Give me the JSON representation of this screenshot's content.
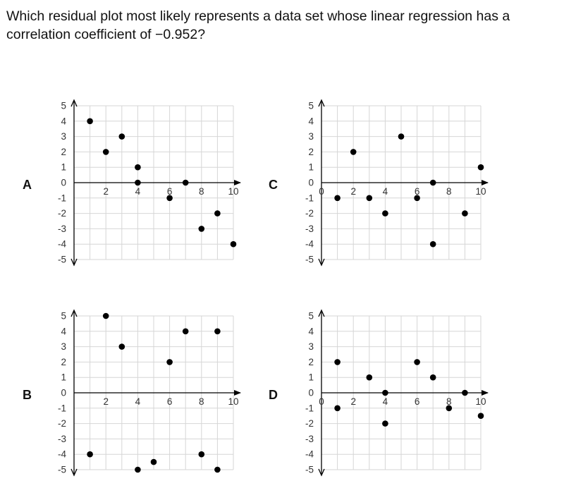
{
  "question": {
    "text": "Which residual plot most likely represents a data set whose linear regression has a correlation coefficient of −0.952?"
  },
  "colors": {
    "point": "#000000",
    "grid": "#d6d6d6",
    "axis": "#000000",
    "tick_label": "#333333"
  },
  "chart_data": [
    {
      "type": "scatter",
      "option": "A",
      "xlim": [
        0,
        10
      ],
      "ylim": [
        -5,
        5
      ],
      "x_ticks": [
        "2",
        "4",
        "6",
        "8",
        "10"
      ],
      "y_ticks": [
        "5",
        "4",
        "3",
        "2",
        "1",
        "0",
        "-1",
        "-2",
        "-3",
        "-4",
        "-5"
      ],
      "grid": true,
      "points": [
        [
          1,
          4
        ],
        [
          2,
          2
        ],
        [
          3,
          3
        ],
        [
          4,
          1
        ],
        [
          4,
          0
        ],
        [
          6,
          -1
        ],
        [
          7,
          0
        ],
        [
          8,
          -3
        ],
        [
          9,
          -2
        ],
        [
          10,
          -4
        ]
      ]
    },
    {
      "type": "scatter",
      "option": "C",
      "xlim": [
        0,
        10
      ],
      "ylim": [
        -5,
        5
      ],
      "x_ticks": [
        "0",
        "2",
        "4",
        "6",
        "8",
        "10"
      ],
      "y_ticks": [
        "5",
        "4",
        "3",
        "2",
        "1",
        "0",
        "-1",
        "-2",
        "-3",
        "-4",
        "-5"
      ],
      "grid": true,
      "points": [
        [
          1,
          -1
        ],
        [
          2,
          2
        ],
        [
          3,
          -1
        ],
        [
          4,
          -2
        ],
        [
          5,
          3
        ],
        [
          6,
          -1
        ],
        [
          7,
          0
        ],
        [
          7,
          -4
        ],
        [
          9,
          -2
        ],
        [
          10,
          1
        ]
      ]
    },
    {
      "type": "scatter",
      "option": "B",
      "xlim": [
        0,
        10
      ],
      "ylim": [
        -5,
        5
      ],
      "x_ticks": [
        "2",
        "4",
        "6",
        "8",
        "10"
      ],
      "y_ticks": [
        "5",
        "4",
        "3",
        "2",
        "1",
        "0",
        "-1",
        "-2",
        "-3",
        "-4",
        "-5"
      ],
      "grid": true,
      "points": [
        [
          1,
          -4
        ],
        [
          2,
          5
        ],
        [
          3,
          3
        ],
        [
          4,
          -5
        ],
        [
          5,
          -4.5
        ],
        [
          6,
          2
        ],
        [
          7,
          4
        ],
        [
          8,
          -4
        ],
        [
          9,
          4
        ],
        [
          9,
          -5
        ]
      ]
    },
    {
      "type": "scatter",
      "option": "D",
      "xlim": [
        0,
        10
      ],
      "ylim": [
        -5,
        5
      ],
      "x_ticks": [
        "0",
        "2",
        "4",
        "6",
        "8",
        "10"
      ],
      "y_ticks": [
        "5",
        "4",
        "3",
        "2",
        "1",
        "0",
        "-1",
        "-2",
        "-3",
        "-4",
        "-5"
      ],
      "grid": true,
      "points": [
        [
          1,
          2
        ],
        [
          1,
          -1
        ],
        [
          3,
          1
        ],
        [
          4,
          0
        ],
        [
          4,
          -2
        ],
        [
          6,
          2
        ],
        [
          7,
          1
        ],
        [
          8,
          -1
        ],
        [
          9,
          0
        ],
        [
          10,
          -1.5
        ]
      ]
    }
  ]
}
